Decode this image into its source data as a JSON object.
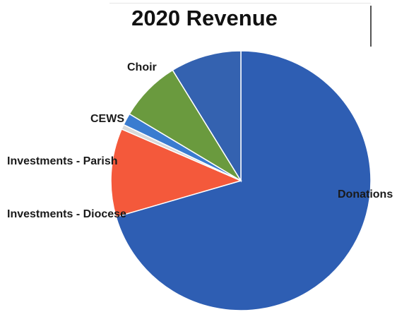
{
  "chart_data": {
    "type": "pie",
    "title": "2020 Revenue",
    "slices": [
      {
        "label": "Donations",
        "value": 70.5,
        "color": "#2E5EB3"
      },
      {
        "label": "Investments - Diocese",
        "value": 11.0,
        "color": "#F4593B"
      },
      {
        "label": "",
        "value": 0.6,
        "color": "#D9D9D9"
      },
      {
        "label": "Investments - Parish",
        "value": 1.5,
        "color": "#3A7CD0"
      },
      {
        "label": "CEWS",
        "value": 7.6,
        "color": "#6A9A3E"
      },
      {
        "label": "Choir",
        "value": 8.8,
        "color": "#3462B0"
      }
    ],
    "start_angle_deg": 0,
    "direction": "clockwise",
    "legend": "none"
  }
}
